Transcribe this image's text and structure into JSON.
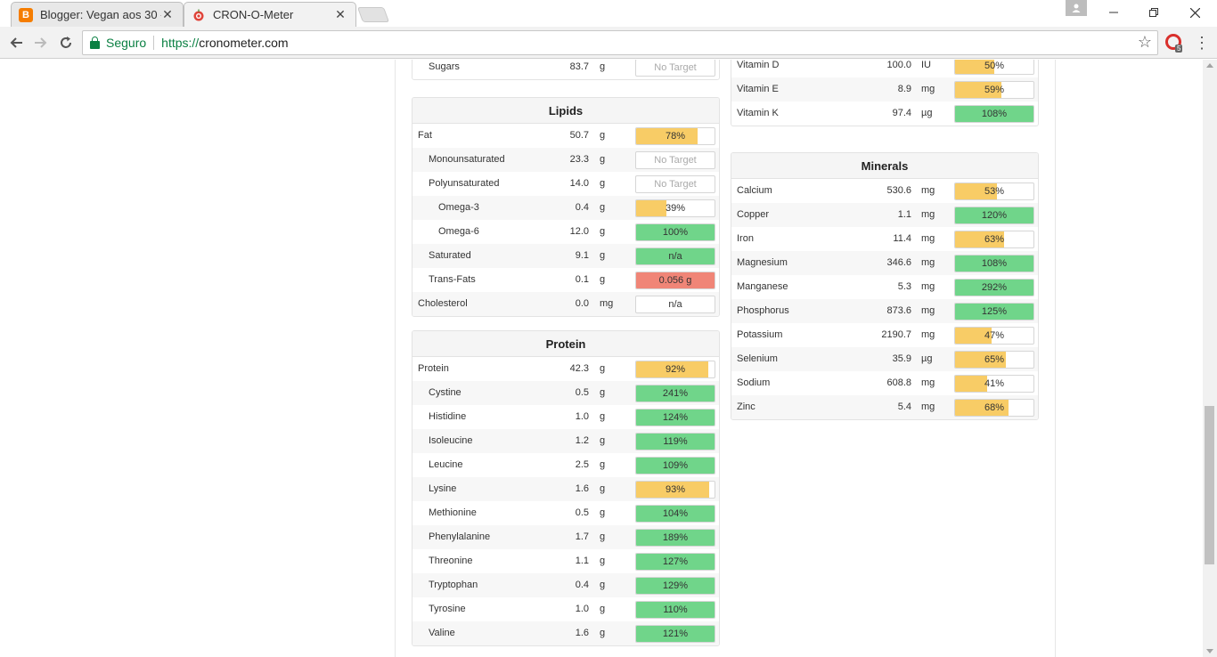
{
  "browser": {
    "tabs": [
      {
        "title": "Blogger: Vegan aos 30 -",
        "favicon": "blogger-icon",
        "active": false
      },
      {
        "title": "CRON-O-Meter",
        "favicon": "apple-icon",
        "active": true
      }
    ],
    "security_label": "Seguro",
    "url_scheme": "https://",
    "url_host": "cronometer.com",
    "extension_badge": "5"
  },
  "colors": {
    "yellow": "#f8cc66",
    "green": "#70d58a",
    "red": "#f08577"
  },
  "carbs_tail": {
    "rows": [
      {
        "name": "Sugars",
        "amount": "83.7",
        "unit": "g",
        "bar_text": "No Target",
        "pct": null,
        "color": null,
        "indent": 1
      }
    ]
  },
  "lipids": {
    "title": "Lipids",
    "rows": [
      {
        "name": "Fat",
        "amount": "50.7",
        "unit": "g",
        "bar_text": "78%",
        "pct": 78,
        "color": "yellow",
        "indent": 0
      },
      {
        "name": "Monounsaturated",
        "amount": "23.3",
        "unit": "g",
        "bar_text": "No Target",
        "pct": null,
        "color": null,
        "indent": 1
      },
      {
        "name": "Polyunsaturated",
        "amount": "14.0",
        "unit": "g",
        "bar_text": "No Target",
        "pct": null,
        "color": null,
        "indent": 1
      },
      {
        "name": "Omega-3",
        "amount": "0.4",
        "unit": "g",
        "bar_text": "39%",
        "pct": 39,
        "color": "yellow",
        "indent": 2
      },
      {
        "name": "Omega-6",
        "amount": "12.0",
        "unit": "g",
        "bar_text": "100%",
        "pct": 100,
        "color": "green",
        "indent": 2
      },
      {
        "name": "Saturated",
        "amount": "9.1",
        "unit": "g",
        "bar_text": "n/a",
        "pct": 100,
        "color": "green",
        "indent": 1
      },
      {
        "name": "Trans-Fats",
        "amount": "0.1",
        "unit": "g",
        "bar_text": "0.056 g",
        "pct": 100,
        "color": "red",
        "indent": 1
      },
      {
        "name": "Cholesterol",
        "amount": "0.0",
        "unit": "mg",
        "bar_text": "n/a",
        "pct": 0,
        "color": null,
        "indent": 0
      }
    ]
  },
  "protein": {
    "title": "Protein",
    "rows": [
      {
        "name": "Protein",
        "amount": "42.3",
        "unit": "g",
        "bar_text": "92%",
        "pct": 92,
        "color": "yellow",
        "indent": 0
      },
      {
        "name": "Cystine",
        "amount": "0.5",
        "unit": "g",
        "bar_text": "241%",
        "pct": 100,
        "color": "green",
        "indent": 1
      },
      {
        "name": "Histidine",
        "amount": "1.0",
        "unit": "g",
        "bar_text": "124%",
        "pct": 100,
        "color": "green",
        "indent": 1
      },
      {
        "name": "Isoleucine",
        "amount": "1.2",
        "unit": "g",
        "bar_text": "119%",
        "pct": 100,
        "color": "green",
        "indent": 1
      },
      {
        "name": "Leucine",
        "amount": "2.5",
        "unit": "g",
        "bar_text": "109%",
        "pct": 100,
        "color": "green",
        "indent": 1
      },
      {
        "name": "Lysine",
        "amount": "1.6",
        "unit": "g",
        "bar_text": "93%",
        "pct": 93,
        "color": "yellow",
        "indent": 1
      },
      {
        "name": "Methionine",
        "amount": "0.5",
        "unit": "g",
        "bar_text": "104%",
        "pct": 100,
        "color": "green",
        "indent": 1
      },
      {
        "name": "Phenylalanine",
        "amount": "1.7",
        "unit": "g",
        "bar_text": "189%",
        "pct": 100,
        "color": "green",
        "indent": 1
      },
      {
        "name": "Threonine",
        "amount": "1.1",
        "unit": "g",
        "bar_text": "127%",
        "pct": 100,
        "color": "green",
        "indent": 1
      },
      {
        "name": "Tryptophan",
        "amount": "0.4",
        "unit": "g",
        "bar_text": "129%",
        "pct": 100,
        "color": "green",
        "indent": 1
      },
      {
        "name": "Tyrosine",
        "amount": "1.0",
        "unit": "g",
        "bar_text": "110%",
        "pct": 100,
        "color": "green",
        "indent": 1
      },
      {
        "name": "Valine",
        "amount": "1.6",
        "unit": "g",
        "bar_text": "121%",
        "pct": 100,
        "color": "green",
        "indent": 1
      }
    ]
  },
  "vitamins_tail": {
    "rows": [
      {
        "name": "Vitamin D",
        "amount": "100.0",
        "unit": "IU",
        "bar_text": "50%",
        "pct": 50,
        "color": "yellow"
      },
      {
        "name": "Vitamin E",
        "amount": "8.9",
        "unit": "mg",
        "bar_text": "59%",
        "pct": 59,
        "color": "yellow"
      },
      {
        "name": "Vitamin K",
        "amount": "97.4",
        "unit": "µg",
        "bar_text": "108%",
        "pct": 100,
        "color": "green"
      }
    ]
  },
  "minerals": {
    "title": "Minerals",
    "rows": [
      {
        "name": "Calcium",
        "amount": "530.6",
        "unit": "mg",
        "bar_text": "53%",
        "pct": 53,
        "color": "yellow"
      },
      {
        "name": "Copper",
        "amount": "1.1",
        "unit": "mg",
        "bar_text": "120%",
        "pct": 100,
        "color": "green"
      },
      {
        "name": "Iron",
        "amount": "11.4",
        "unit": "mg",
        "bar_text": "63%",
        "pct": 63,
        "color": "yellow"
      },
      {
        "name": "Magnesium",
        "amount": "346.6",
        "unit": "mg",
        "bar_text": "108%",
        "pct": 100,
        "color": "green"
      },
      {
        "name": "Manganese",
        "amount": "5.3",
        "unit": "mg",
        "bar_text": "292%",
        "pct": 100,
        "color": "green"
      },
      {
        "name": "Phosphorus",
        "amount": "873.6",
        "unit": "mg",
        "bar_text": "125%",
        "pct": 100,
        "color": "green"
      },
      {
        "name": "Potassium",
        "amount": "2190.7",
        "unit": "mg",
        "bar_text": "47%",
        "pct": 47,
        "color": "yellow"
      },
      {
        "name": "Selenium",
        "amount": "35.9",
        "unit": "µg",
        "bar_text": "65%",
        "pct": 65,
        "color": "yellow"
      },
      {
        "name": "Sodium",
        "amount": "608.8",
        "unit": "mg",
        "bar_text": "41%",
        "pct": 41,
        "color": "yellow"
      },
      {
        "name": "Zinc",
        "amount": "5.4",
        "unit": "mg",
        "bar_text": "68%",
        "pct": 68,
        "color": "yellow"
      }
    ]
  }
}
